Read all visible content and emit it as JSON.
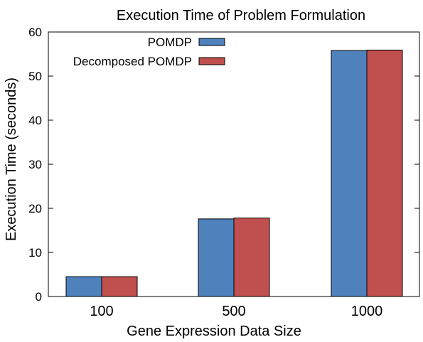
{
  "chart_data": {
    "type": "bar",
    "title": "Execution Time of Problem Formulation",
    "xlabel": "Gene Expression Data Size",
    "ylabel": "Execution Time (seconds)",
    "categories": [
      "100",
      "500",
      "1000"
    ],
    "series": [
      {
        "name": "POMDP",
        "values": [
          4.5,
          17.6,
          55.8
        ],
        "color": "#4f81bd"
      },
      {
        "name": "Decomposed POMDP",
        "values": [
          4.5,
          17.8,
          55.9
        ],
        "color": "#c0504d"
      }
    ],
    "ylim": [
      0,
      60
    ],
    "yticks": [
      0,
      10,
      20,
      30,
      40,
      50,
      60
    ],
    "grid": false,
    "legend_position": "top-center"
  }
}
